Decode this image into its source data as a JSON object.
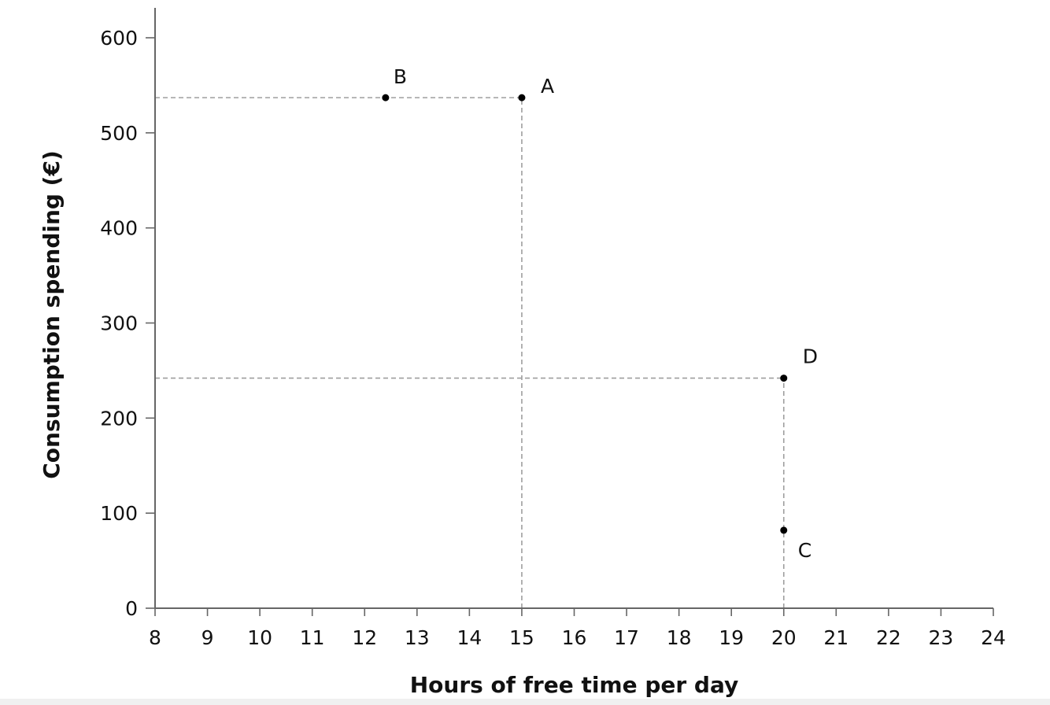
{
  "chart_data": {
    "type": "scatter",
    "title": "",
    "xlabel": "Hours of free time per day",
    "ylabel": "Consumption spending (€)",
    "xlim": [
      8,
      24
    ],
    "ylim": [
      0,
      600
    ],
    "xticks": [
      8,
      9,
      10,
      11,
      12,
      13,
      14,
      15,
      16,
      17,
      18,
      19,
      20,
      21,
      22,
      23,
      24
    ],
    "yticks": [
      0,
      100,
      200,
      300,
      400,
      500,
      600
    ],
    "grid": false,
    "points": [
      {
        "label": "A",
        "x": 15,
        "y": 537
      },
      {
        "label": "B",
        "x": 12.4,
        "y": 537
      },
      {
        "label": "C",
        "x": 20,
        "y": 82
      },
      {
        "label": "D",
        "x": 20,
        "y": 242
      }
    ],
    "guides": [
      {
        "type": "horizontal",
        "y": 537,
        "x_from": 8,
        "x_to": 15
      },
      {
        "type": "vertical",
        "x": 15,
        "y_from": 0,
        "y_to": 537
      },
      {
        "type": "horizontal",
        "y": 242,
        "x_from": 8,
        "x_to": 20
      },
      {
        "type": "vertical",
        "x": 20,
        "y_from": 0,
        "y_to": 242
      }
    ],
    "colors": {
      "axis": "#666666",
      "guide": "#9e9e9e",
      "point": "#000000"
    }
  }
}
